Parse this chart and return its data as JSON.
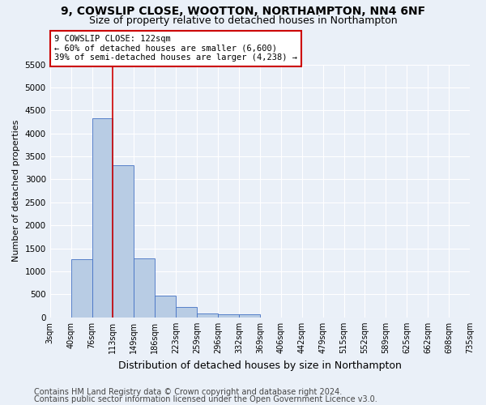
{
  "title1": "9, COWSLIP CLOSE, WOOTTON, NORTHAMPTON, NN4 6NF",
  "title2": "Size of property relative to detached houses in Northampton",
  "xlabel": "Distribution of detached houses by size in Northampton",
  "ylabel": "Number of detached properties",
  "footer1": "Contains HM Land Registry data © Crown copyright and database right 2024.",
  "footer2": "Contains public sector information licensed under the Open Government Licence v3.0.",
  "annotation_title": "9 COWSLIP CLOSE: 122sqm",
  "annotation_line1": "← 60% of detached houses are smaller (6,600)",
  "annotation_line2": "39% of semi-detached houses are larger (4,238) →",
  "bar_values": [
    0,
    1270,
    4330,
    3300,
    1280,
    480,
    220,
    90,
    70,
    60,
    0,
    0,
    0,
    0,
    0,
    0,
    0,
    0,
    0,
    0
  ],
  "categories": [
    "3sqm",
    "40sqm",
    "76sqm",
    "113sqm",
    "149sqm",
    "186sqm",
    "223sqm",
    "259sqm",
    "296sqm",
    "332sqm",
    "369sqm",
    "406sqm",
    "442sqm",
    "479sqm",
    "515sqm",
    "552sqm",
    "589sqm",
    "625sqm",
    "662sqm",
    "698sqm",
    "735sqm"
  ],
  "bar_color": "#b8cce4",
  "bar_edge_color": "#4472c4",
  "redline_x": 3,
  "ylim": [
    0,
    5500
  ],
  "yticks": [
    0,
    500,
    1000,
    1500,
    2000,
    2500,
    3000,
    3500,
    4000,
    4500,
    5000,
    5500
  ],
  "bg_color": "#eaf0f8",
  "plot_bg_color": "#eaf0f8",
  "grid_color": "#ffffff",
  "annotation_box_color": "#ffffff",
  "annotation_box_edge": "#cc0000",
  "redline_color": "#cc0000",
  "title1_fontsize": 10,
  "title2_fontsize": 9,
  "ylabel_fontsize": 8,
  "xlabel_fontsize": 9,
  "footer_fontsize": 7,
  "tick_fontsize": 7.5,
  "annotation_fontsize": 7.5
}
